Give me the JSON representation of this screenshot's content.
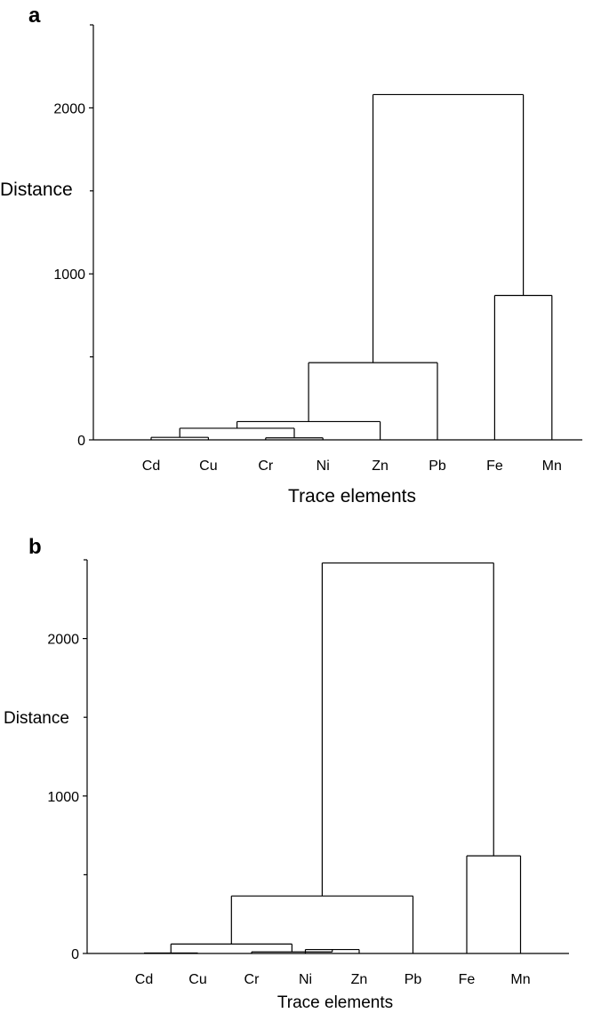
{
  "chart_data": [
    {
      "type": "dendrogram",
      "panel_label": "a",
      "xlabel": "Trace elements",
      "ylabel": "Distance",
      "ylim": [
        0,
        2500
      ],
      "yticks": [
        0,
        1000,
        2000
      ],
      "yticks_minor": [
        500,
        1500,
        2500
      ],
      "leaves": [
        "Cd",
        "Cu",
        "Cr",
        "Ni",
        "Zn",
        "Pb",
        "Fe",
        "Mn"
      ],
      "merges": [
        {
          "left": "Cd",
          "right": "Cu",
          "height": 15
        },
        {
          "left": "Cr",
          "right": "Ni",
          "height": 12
        },
        {
          "left": "Cd+Cu",
          "right": "Cr+Ni",
          "height": 70
        },
        {
          "left": "Cd+Cu+Cr+Ni",
          "right": "Zn",
          "height": 110
        },
        {
          "left": "Cd+Cu+Cr+Ni+Zn",
          "right": "Pb",
          "height": 465
        },
        {
          "left": "Fe",
          "right": "Mn",
          "height": 870
        },
        {
          "left": "Cd+Cu+Cr+Ni+Zn+Pb",
          "right": "Fe+Mn",
          "height": 2080
        }
      ]
    },
    {
      "type": "dendrogram",
      "panel_label": "b",
      "xlabel": "Trace elements",
      "ylabel": "Distance",
      "ylim": [
        0,
        2500
      ],
      "yticks": [
        0,
        1000,
        2000
      ],
      "yticks_minor": [
        500,
        1500,
        2500
      ],
      "leaves": [
        "Cd",
        "Cu",
        "Cr",
        "Ni",
        "Zn",
        "Pb",
        "Fe",
        "Mn"
      ],
      "merges": [
        {
          "left": "Cd",
          "right": "Cu",
          "height": 3
        },
        {
          "left": "Ni",
          "right": "Zn",
          "height": 25
        },
        {
          "left": "Cr",
          "right": "Ni+Zn",
          "height": 10
        },
        {
          "left": "Cd+Cu",
          "right": "Cr+Ni+Zn",
          "height": 60
        },
        {
          "left": "Cd+Cu+Cr+Ni+Zn",
          "right": "Pb",
          "height": 365
        },
        {
          "left": "Fe",
          "right": "Mn",
          "height": 620
        },
        {
          "left": "Cd+Cu+Cr+Ni+Zn+Pb",
          "right": "Fe+Mn",
          "height": 2480
        }
      ]
    }
  ]
}
